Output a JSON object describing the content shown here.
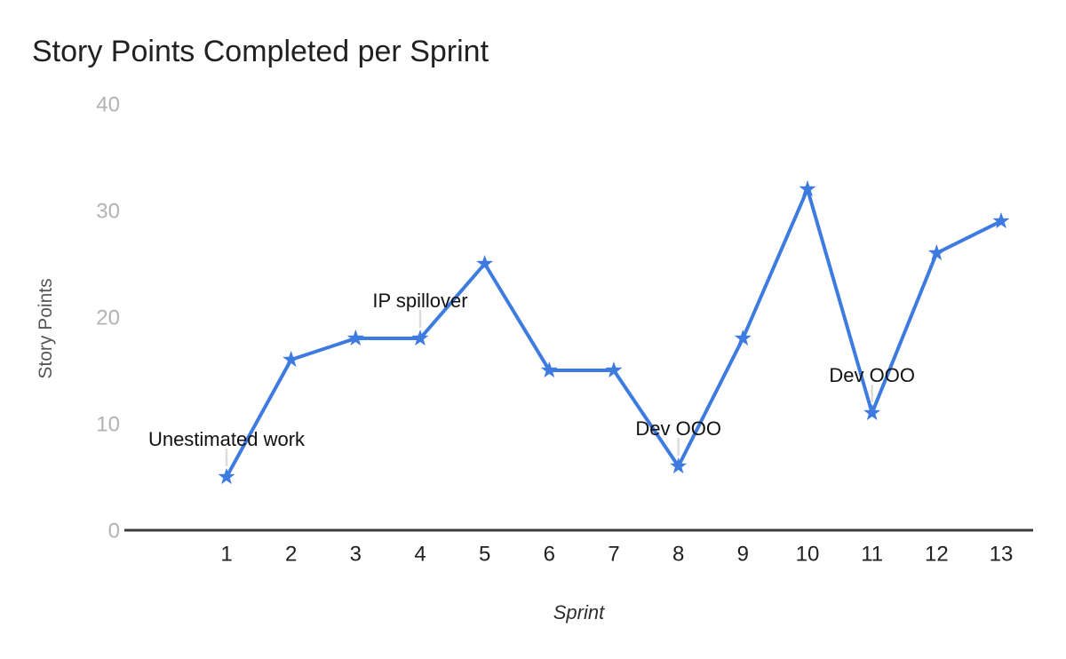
{
  "chart_data": {
    "type": "line",
    "title": "Story Points Completed per Sprint",
    "xlabel": "Sprint",
    "ylabel": "Story Points",
    "categories": [
      1,
      2,
      3,
      4,
      5,
      6,
      7,
      8,
      9,
      10,
      11,
      12,
      13
    ],
    "series": [
      {
        "name": "Story Points",
        "values": [
          5,
          16,
          18,
          18,
          25,
          15,
          15,
          6,
          18,
          32,
          11,
          26,
          29
        ]
      }
    ],
    "ylim": [
      0,
      40
    ],
    "yticks": [
      0,
      10,
      20,
      30,
      40
    ],
    "grid": false,
    "legend_position": "none",
    "marker": "star",
    "annotations": [
      {
        "sprint": 1,
        "text": "Unestimated work"
      },
      {
        "sprint": 4,
        "text": "IP spillover"
      },
      {
        "sprint": 8,
        "text": "Dev OOO"
      },
      {
        "sprint": 11,
        "text": "Dev OOO"
      }
    ],
    "colors": {
      "line": "#3e7be0",
      "axis_line": "#3c3c3c",
      "y_tick": "#b3b3b3",
      "x_tick": "#212121",
      "annotation_text": "#111111",
      "annotation_stem": "#dcdcdc",
      "title": "#212121",
      "y_axis_title": "#565656",
      "x_axis_title": "#2e2e2e"
    }
  }
}
